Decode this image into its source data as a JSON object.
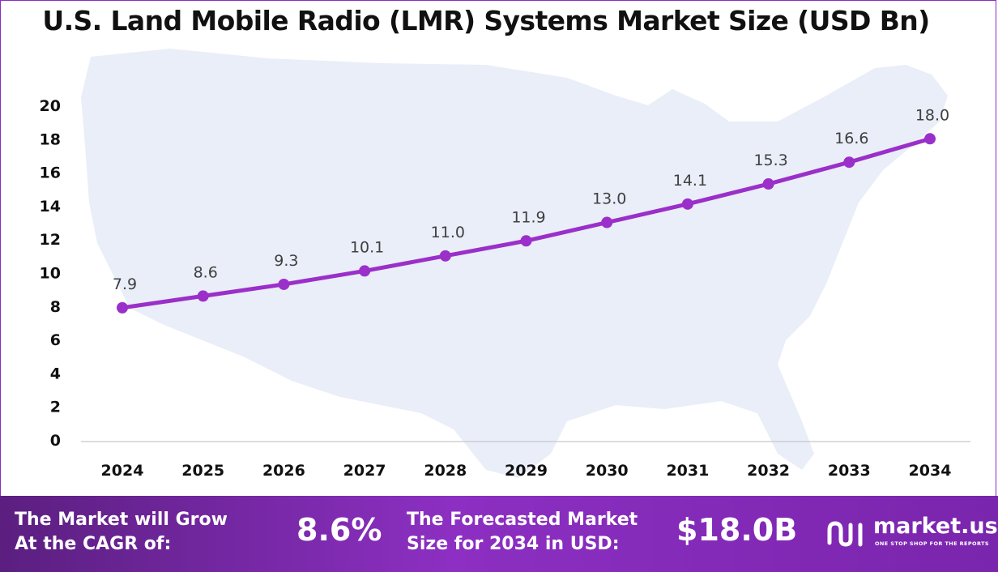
{
  "chart_data": {
    "type": "line",
    "title": "U.S. Land Mobile Radio (LMR) Systems Market Size (USD Bn)",
    "categories": [
      "2024",
      "2025",
      "2026",
      "2027",
      "2028",
      "2029",
      "2030",
      "2031",
      "2032",
      "2033",
      "2034"
    ],
    "values": [
      7.9,
      8.6,
      9.3,
      10.1,
      11.0,
      11.9,
      13.0,
      14.1,
      15.3,
      16.6,
      18.0
    ],
    "value_labels": [
      "7.9",
      "8.6",
      "9.3",
      "10.1",
      "11.0",
      "11.9",
      "13.0",
      "14.1",
      "15.3",
      "16.6",
      "18.0"
    ],
    "y_ticks": [
      "0",
      "2",
      "4",
      "6",
      "8",
      "10",
      "12",
      "14",
      "16",
      "18",
      "20"
    ],
    "ylim": [
      0,
      20
    ],
    "xlabel": "",
    "ylabel": "",
    "grid": false,
    "line_color": "#9b2fc9",
    "background_map": "united-states-map-silhouette"
  },
  "footer": {
    "cagr_line1": "The Market will Grow",
    "cagr_line2": "At the CAGR of:",
    "cagr_value": "8.6%",
    "forecast_line1": "The Forecasted Market",
    "forecast_line2": "Size for 2034 in USD:",
    "forecast_value": "$18.0B",
    "logo_name": "market.us",
    "logo_tagline": "ONE STOP SHOP FOR THE REPORTS",
    "logo_icon": "market-us-logo-icon"
  },
  "colors": {
    "accent": "#9b2fc9",
    "footer_start": "#5b1f80",
    "footer_end": "#8c2fc2",
    "map": "#e9eef8"
  }
}
